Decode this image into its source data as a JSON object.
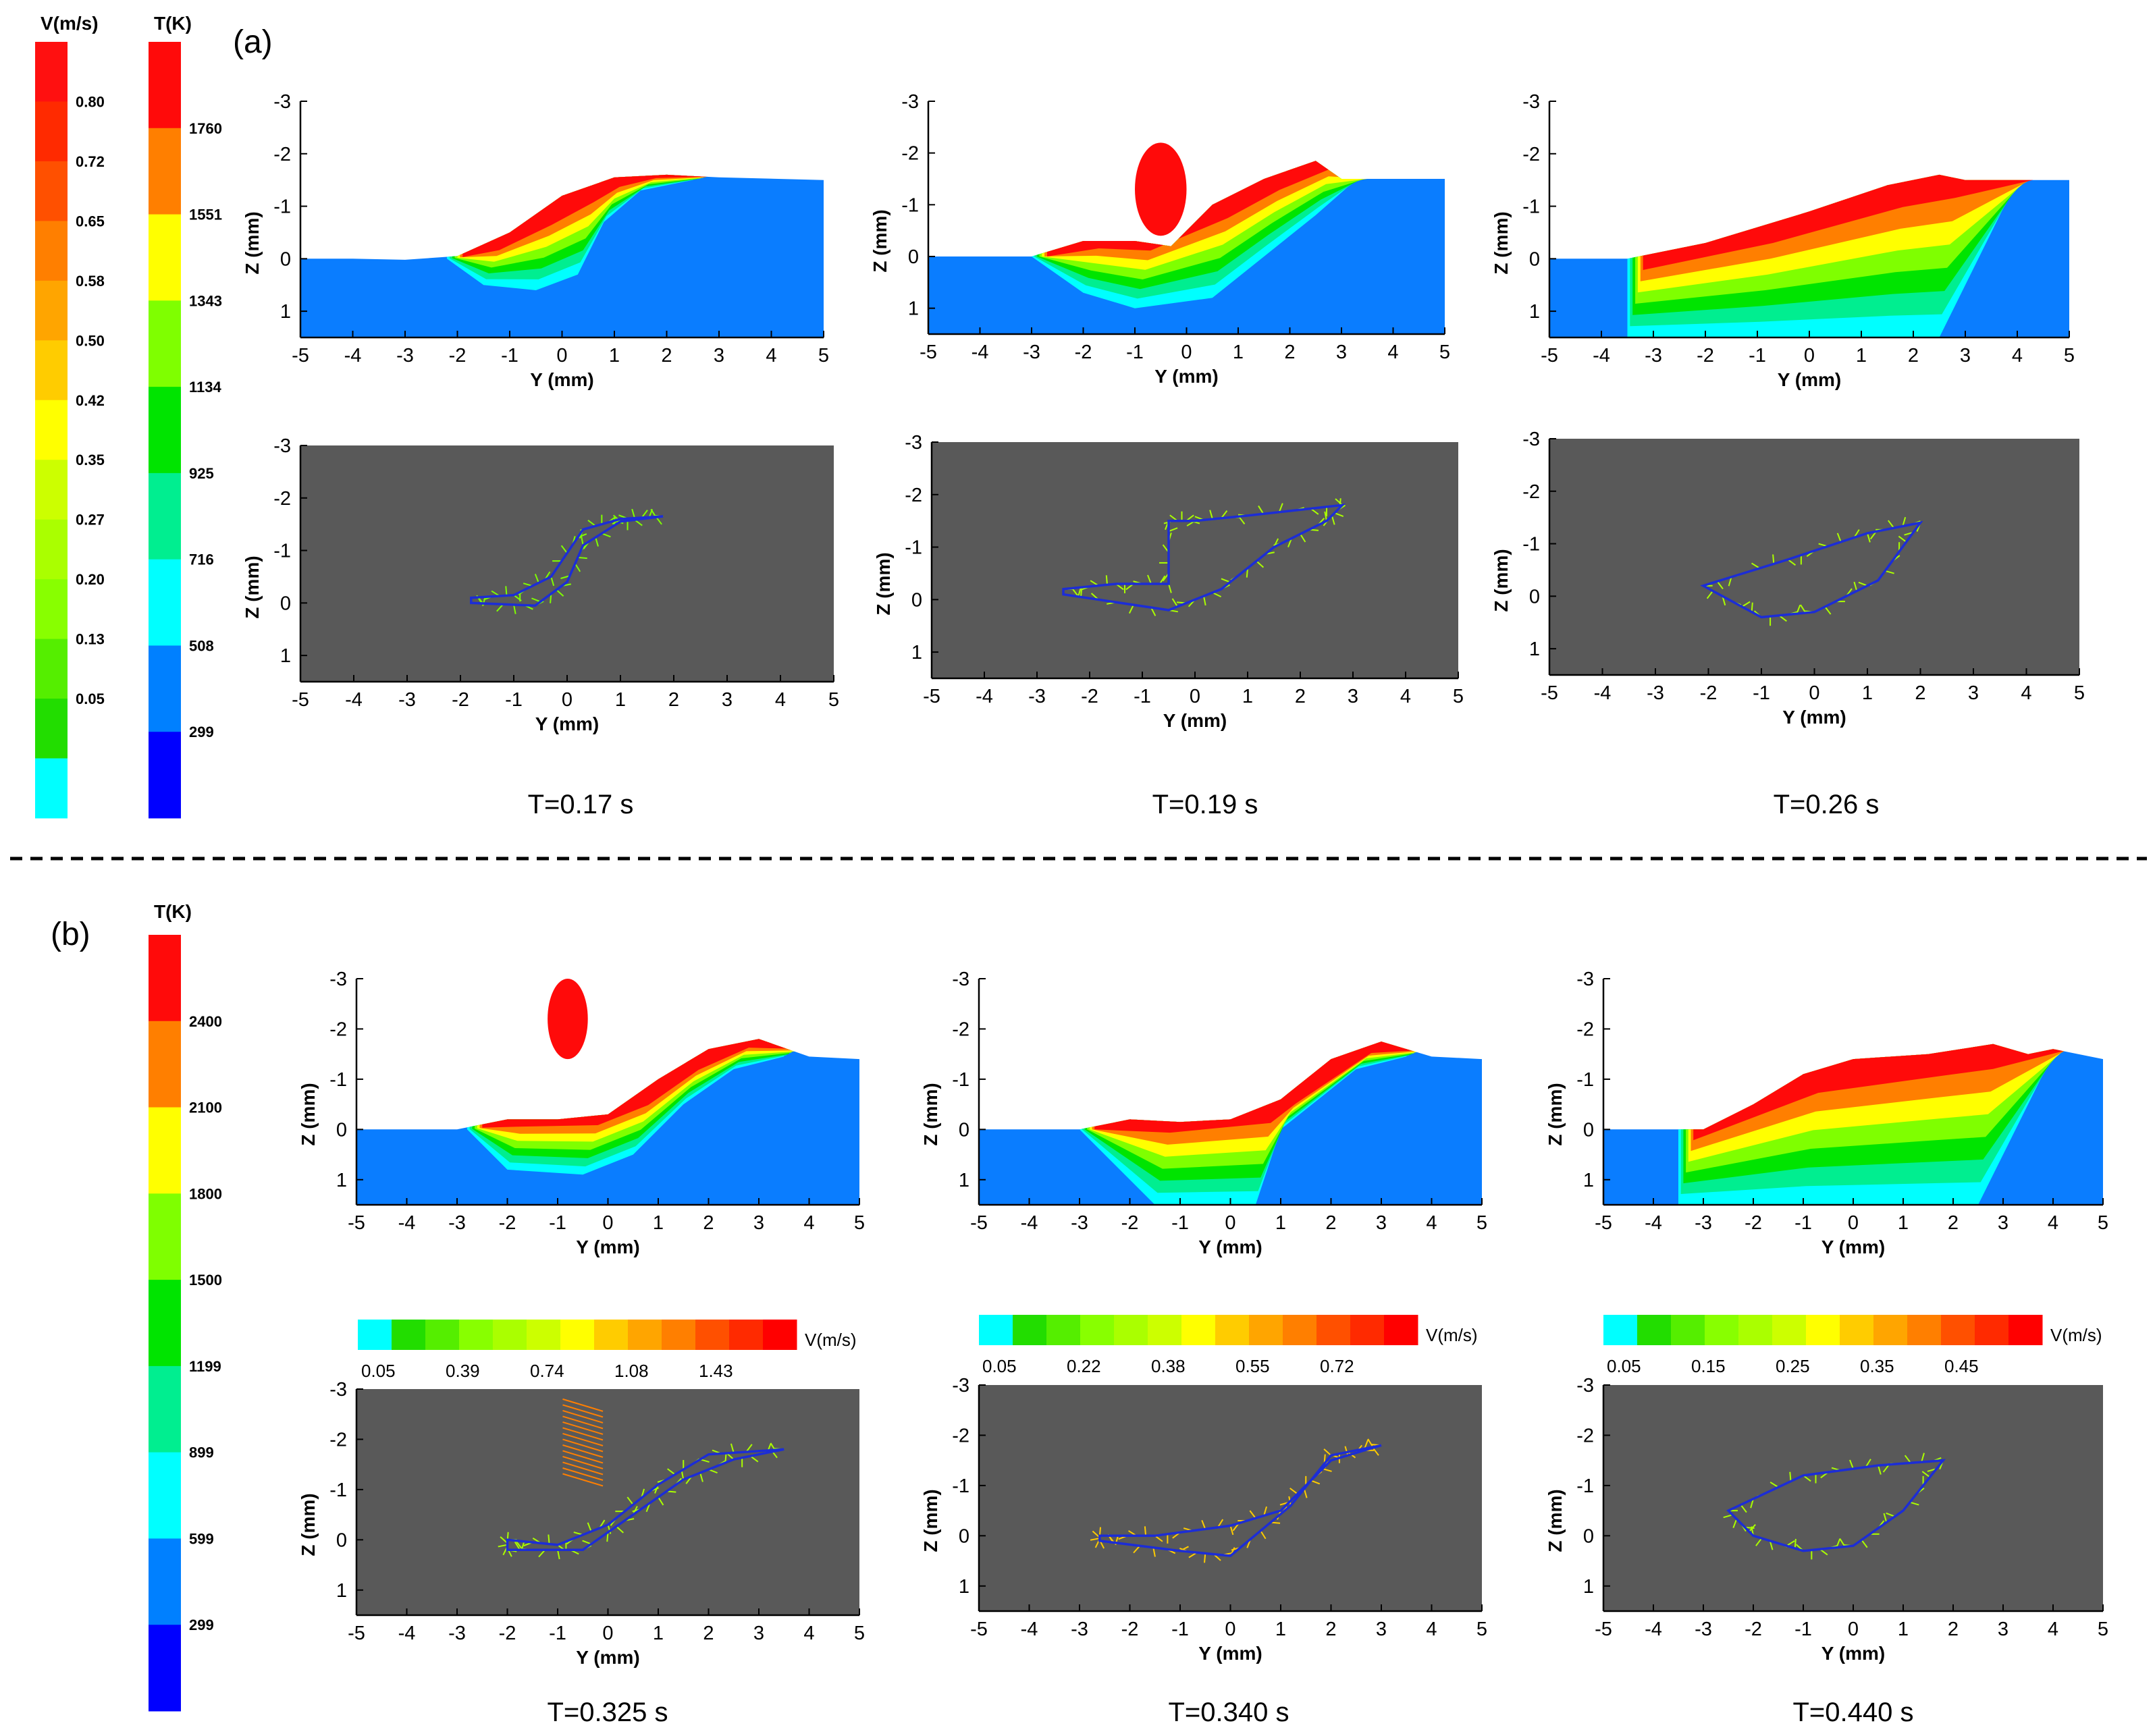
{
  "figure": {
    "panel_a_label": "(a)",
    "panel_b_label": "(b)"
  },
  "axes": {
    "y_label": "Y (mm)",
    "z_label": "Z (mm)",
    "y_ticks": [
      "-5",
      "-4",
      "-3",
      "-2",
      "-1",
      "0",
      "1",
      "2",
      "3",
      "4",
      "5"
    ],
    "z_ticks": [
      "-3",
      "-2",
      "-1",
      "0",
      "1"
    ]
  },
  "legends": {
    "a_velocity": {
      "title": "V(m/s)",
      "labels": [
        "0.80",
        "0.72",
        "0.65",
        "0.58",
        "0.50",
        "0.42",
        "0.35",
        "0.27",
        "0.20",
        "0.13",
        "0.05"
      ]
    },
    "a_temperature": {
      "title": "T(K)",
      "labels": [
        "1760",
        "1551",
        "1343",
        "1134",
        "925",
        "716",
        "508",
        "299"
      ]
    },
    "b_temperature": {
      "title": "T(K)",
      "labels": [
        "2400",
        "2100",
        "1800",
        "1500",
        "1199",
        "899",
        "599",
        "299"
      ]
    },
    "b_vel_1": {
      "title": "V(m/s)",
      "labels": [
        "0.05",
        "0.39",
        "0.74",
        "1.08",
        "1.43"
      ]
    },
    "b_vel_2": {
      "title": "V(m/s)",
      "labels": [
        "0.05",
        "0.22",
        "0.38",
        "0.55",
        "0.72"
      ]
    },
    "b_vel_3": {
      "title": "V(m/s)",
      "labels": [
        "0.05",
        "0.15",
        "0.25",
        "0.35",
        "0.45"
      ]
    }
  },
  "colors": {
    "temp_scale": [
      "#ff0a0a",
      "#ff7f00",
      "#ffff00",
      "#7fff00",
      "#00e400",
      "#00ee90",
      "#00ffff",
      "#0080ff",
      "#0000ff"
    ],
    "vel_scale": [
      "#00ffff",
      "#22dd00",
      "#55ee00",
      "#88ff00",
      "#aaff00",
      "#ccff00",
      "#ffff00",
      "#ffcc00",
      "#ffa500",
      "#ff7f00",
      "#ff5000",
      "#ff2a00",
      "#ff0000"
    ],
    "substrate": "#0a7dff",
    "flow_background": "#595959",
    "pool_outline": "#1c2dd6"
  },
  "chart_data": [
    {
      "type": "heatmap",
      "panel": "a",
      "quantity": "temperature",
      "time": "T=0.17 s",
      "xlabel": "Y (mm)",
      "ylabel": "Z (mm)",
      "xlim": [
        -5,
        5
      ],
      "ylim": [
        1.5,
        -3
      ],
      "surface": [
        [
          -5,
          0
        ],
        [
          -4,
          0
        ],
        [
          -3,
          0.02
        ],
        [
          -2,
          -0.05
        ],
        [
          -1,
          -0.5
        ],
        [
          0,
          -1.2
        ],
        [
          1,
          -1.55
        ],
        [
          2,
          -1.6
        ],
        [
          3,
          -1.55
        ],
        [
          5,
          -1.5
        ]
      ],
      "pool_bottom": [
        [
          -2.2,
          0
        ],
        [
          -1.5,
          0.5
        ],
        [
          -0.5,
          0.6
        ],
        [
          0.3,
          0.3
        ],
        [
          0.8,
          -0.7
        ],
        [
          1.5,
          -1.3
        ],
        [
          2.5,
          -1.5
        ]
      ],
      "bumps": []
    },
    {
      "type": "heatmap",
      "panel": "a",
      "quantity": "temperature",
      "time": "T=0.19 s",
      "xlabel": "Y (mm)",
      "ylabel": "Z (mm)",
      "xlim": [
        -5,
        5
      ],
      "ylim": [
        1.5,
        -3
      ],
      "surface": [
        [
          -5,
          0
        ],
        [
          -3,
          0
        ],
        [
          -2,
          -0.3
        ],
        [
          -1,
          -0.3
        ],
        [
          -0.3,
          -0.2
        ],
        [
          0.5,
          -1
        ],
        [
          1.5,
          -1.5
        ],
        [
          2.5,
          -1.85
        ],
        [
          3,
          -1.5
        ],
        [
          5,
          -1.5
        ]
      ],
      "pool_bottom": [
        [
          -3,
          0
        ],
        [
          -2,
          0.7
        ],
        [
          -1,
          1.0
        ],
        [
          0.5,
          0.8
        ],
        [
          1.5,
          0
        ],
        [
          2.5,
          -0.8
        ],
        [
          3.3,
          -1.5
        ]
      ],
      "bumps": [
        {
          "y": -0.5,
          "z": -1.3,
          "rx": 0.5,
          "rz": 0.9
        }
      ]
    },
    {
      "type": "heatmap",
      "panel": "a",
      "quantity": "temperature",
      "time": "T=0.26 s",
      "xlabel": "Y (mm)",
      "ylabel": "Z (mm)",
      "xlim": [
        -5,
        5
      ],
      "ylim": [
        1.5,
        -3
      ],
      "surface": [
        [
          -5,
          0
        ],
        [
          -3.5,
          0
        ],
        [
          -2,
          -0.3
        ],
        [
          0,
          -0.9
        ],
        [
          1.5,
          -1.4
        ],
        [
          2.5,
          -1.6
        ],
        [
          3,
          -1.5
        ],
        [
          5,
          -1.5
        ]
      ],
      "pool_bottom": [
        [
          -3.5,
          1.5
        ],
        [
          -1,
          1.5
        ],
        [
          1.5,
          1.5
        ],
        [
          2.5,
          1.5
        ],
        [
          4,
          -1.5
        ]
      ],
      "bumps": []
    },
    {
      "type": "scatter",
      "panel": "a",
      "quantity": "velocity vectors",
      "time": "T=0.17 s",
      "xlabel": "Y (mm)",
      "ylabel": "Z (mm)",
      "xlim": [
        -5,
        5
      ],
      "ylim": [
        1.5,
        -3
      ],
      "pool_boundary": [
        [
          -1.8,
          -0.1
        ],
        [
          -1,
          -0.15
        ],
        [
          -0.3,
          -0.5
        ],
        [
          0.3,
          -1.4
        ],
        [
          1,
          -1.6
        ],
        [
          1.8,
          -1.65
        ],
        [
          1,
          -1.55
        ],
        [
          0.3,
          -1.1
        ],
        [
          0,
          -0.4
        ],
        [
          -0.6,
          0.05
        ],
        [
          -1.8,
          0
        ]
      ],
      "droplet": null,
      "vector_color": "#7fff00"
    },
    {
      "type": "scatter",
      "panel": "a",
      "quantity": "velocity vectors",
      "time": "T=0.19 s",
      "xlabel": "Y (mm)",
      "ylabel": "Z (mm)",
      "xlim": [
        -5,
        5
      ],
      "ylim": [
        1.5,
        -3
      ],
      "pool_boundary": [
        [
          -2.5,
          -0.2
        ],
        [
          -1.5,
          -0.3
        ],
        [
          -0.5,
          -0.3
        ],
        [
          -0.5,
          -1.5
        ],
        [
          0,
          -1.5
        ],
        [
          1,
          -1.6
        ],
        [
          2.8,
          -1.8
        ],
        [
          2.5,
          -1.5
        ],
        [
          1.5,
          -1
        ],
        [
          0.5,
          -0.2
        ],
        [
          -0.5,
          0.2
        ],
        [
          -2.5,
          -0.1
        ]
      ],
      "droplet": null,
      "vector_color": "#aaff00"
    },
    {
      "type": "scatter",
      "panel": "a",
      "quantity": "velocity vectors",
      "time": "T=0.26 s",
      "xlabel": "Y (mm)",
      "ylabel": "Z (mm)",
      "xlim": [
        -5,
        5
      ],
      "ylim": [
        1.5,
        -3
      ],
      "pool_boundary": [
        [
          -2.1,
          -0.2
        ],
        [
          -0.5,
          -0.7
        ],
        [
          1,
          -1.2
        ],
        [
          2,
          -1.4
        ],
        [
          1.2,
          -0.3
        ],
        [
          0,
          0.3
        ],
        [
          -1,
          0.4
        ],
        [
          -2.1,
          -0.2
        ]
      ],
      "droplet": null,
      "vector_color": "#aaff00"
    },
    {
      "type": "heatmap",
      "panel": "b",
      "quantity": "temperature",
      "time": "T=0.325 s",
      "xlabel": "Y (mm)",
      "ylabel": "Z (mm)",
      "xlim": [
        -5,
        5
      ],
      "ylim": [
        1.5,
        -3
      ],
      "surface": [
        [
          -5,
          0
        ],
        [
          -3,
          0
        ],
        [
          -2,
          -0.2
        ],
        [
          -1,
          -0.2
        ],
        [
          0,
          -0.3
        ],
        [
          1,
          -1
        ],
        [
          2,
          -1.6
        ],
        [
          3,
          -1.8
        ],
        [
          4,
          -1.45
        ],
        [
          5,
          -1.4
        ]
      ],
      "pool_bottom": [
        [
          -2.8,
          0
        ],
        [
          -2,
          0.8
        ],
        [
          -0.5,
          0.9
        ],
        [
          0.5,
          0.5
        ],
        [
          1.5,
          -0.5
        ],
        [
          2.5,
          -1.2
        ],
        [
          3.5,
          -1.45
        ]
      ],
      "bumps": [],
      "droplet": {
        "y": -0.8,
        "z": -2.2,
        "rx": 0.4,
        "rz": 0.8
      }
    },
    {
      "type": "heatmap",
      "panel": "b",
      "quantity": "temperature",
      "time": "T=0.340 s",
      "xlabel": "Y (mm)",
      "ylabel": "Z (mm)",
      "xlim": [
        -5,
        5
      ],
      "ylim": [
        1.5,
        -3
      ],
      "surface": [
        [
          -5,
          0
        ],
        [
          -3,
          0
        ],
        [
          -2,
          -0.2
        ],
        [
          -1,
          -0.15
        ],
        [
          0,
          -0.2
        ],
        [
          1,
          -0.6
        ],
        [
          2,
          -1.4
        ],
        [
          3,
          -1.75
        ],
        [
          4,
          -1.45
        ],
        [
          5,
          -1.4
        ]
      ],
      "pool_bottom": [
        [
          -3,
          0
        ],
        [
          -1.5,
          1.5
        ],
        [
          0.5,
          1.5
        ],
        [
          1,
          0
        ],
        [
          2.5,
          -1.2
        ],
        [
          3.5,
          -1.45
        ]
      ],
      "bumps": []
    },
    {
      "type": "heatmap",
      "panel": "b",
      "quantity": "temperature",
      "time": "T=0.440 s",
      "xlabel": "Y (mm)",
      "ylabel": "Z (mm)",
      "xlim": [
        -5,
        5
      ],
      "ylim": [
        1.5,
        -3
      ],
      "surface": [
        [
          -5,
          0
        ],
        [
          -3,
          0
        ],
        [
          -2,
          -0.5
        ],
        [
          -1,
          -1.1
        ],
        [
          0,
          -1.4
        ],
        [
          1.5,
          -1.5
        ],
        [
          2.8,
          -1.7
        ],
        [
          3.5,
          -1.5
        ],
        [
          4,
          -1.6
        ],
        [
          5,
          -1.4
        ]
      ],
      "pool_bottom": [
        [
          -3.5,
          1.5
        ],
        [
          -1,
          1.5
        ],
        [
          1.5,
          1.5
        ],
        [
          2.5,
          1.5
        ],
        [
          4,
          -1.5
        ]
      ],
      "bumps": []
    },
    {
      "type": "scatter",
      "panel": "b",
      "quantity": "velocity vectors",
      "time": "T=0.325 s",
      "xlabel": "Y (mm)",
      "ylabel": "Z (mm)",
      "xlim": [
        -5,
        5
      ],
      "ylim": [
        1.5,
        -3
      ],
      "pool_boundary": [
        [
          -2,
          0
        ],
        [
          -1,
          0.1
        ],
        [
          0,
          -0.3
        ],
        [
          1,
          -1.1
        ],
        [
          2,
          -1.7
        ],
        [
          3.5,
          -1.8
        ],
        [
          2.5,
          -1.6
        ],
        [
          1.5,
          -1.2
        ],
        [
          0.5,
          -0.5
        ],
        [
          -0.5,
          0.2
        ],
        [
          -2,
          0.2
        ],
        [
          -2,
          0
        ]
      ],
      "droplet": {
        "y": -0.5,
        "z": -2,
        "rx": 0.5,
        "rz": 0.8
      },
      "vector_color": "#aaff00"
    },
    {
      "type": "scatter",
      "panel": "b",
      "quantity": "velocity vectors",
      "time": "T=0.340 s",
      "xlabel": "Y (mm)",
      "ylabel": "Z (mm)",
      "xlim": [
        -5,
        5
      ],
      "ylim": [
        1.5,
        -3
      ],
      "pool_boundary": [
        [
          -2.6,
          0
        ],
        [
          -1.5,
          0
        ],
        [
          0,
          -0.2
        ],
        [
          1,
          -0.5
        ],
        [
          2,
          -1.5
        ],
        [
          3,
          -1.8
        ],
        [
          2,
          -1.6
        ],
        [
          1.2,
          -0.6
        ],
        [
          0,
          0.4
        ],
        [
          -1,
          0.3
        ],
        [
          -2.6,
          0.1
        ],
        [
          -2.6,
          0
        ]
      ],
      "droplet": null,
      "vector_color": "#ffcc00"
    },
    {
      "type": "scatter",
      "panel": "b",
      "quantity": "velocity vectors",
      "time": "T=0.440 s",
      "xlabel": "Y (mm)",
      "ylabel": "Z (mm)",
      "xlim": [
        -5,
        5
      ],
      "ylim": [
        1.5,
        -3
      ],
      "pool_boundary": [
        [
          -2.5,
          -0.5
        ],
        [
          -1,
          -1.2
        ],
        [
          0.5,
          -1.4
        ],
        [
          1.8,
          -1.5
        ],
        [
          1,
          -0.5
        ],
        [
          0,
          0.2
        ],
        [
          -1,
          0.3
        ],
        [
          -2,
          0
        ],
        [
          -2.5,
          -0.5
        ]
      ],
      "droplet": null,
      "vector_color": "#aaff00"
    }
  ]
}
